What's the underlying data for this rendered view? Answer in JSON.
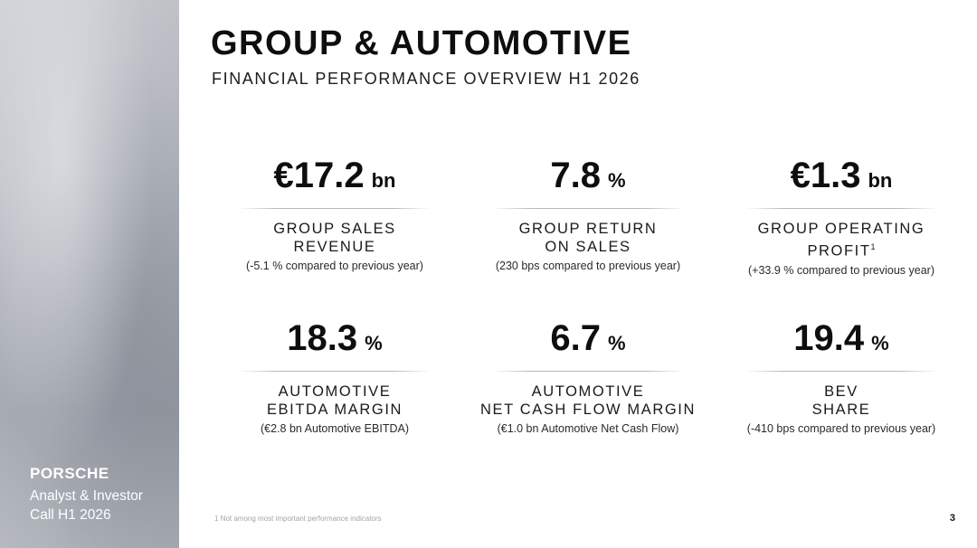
{
  "header": {
    "title": "GROUP & AUTOMOTIVE",
    "subtitle": "FINANCIAL PERFORMANCE OVERVIEW H1 2026"
  },
  "sidebar": {
    "brand": "PORSCHE",
    "event_line1": "Analyst & Investor",
    "event_line2": "Call H1 2026"
  },
  "kpis": [
    {
      "value": "€17.2",
      "unit": "bn",
      "label_line1": "GROUP SALES",
      "label_line2": "REVENUE",
      "label_sup": "",
      "note": "(-5.1 % compared to previous year)"
    },
    {
      "value": "7.8",
      "unit": "%",
      "label_line1": "GROUP RETURN",
      "label_line2": "ON SALES",
      "label_sup": "",
      "note": "(230 bps compared to previous year)"
    },
    {
      "value": "€1.3",
      "unit": "bn",
      "label_line1": "GROUP OPERATING",
      "label_line2": "PROFIT",
      "label_sup": "1",
      "note": "(+33.9 % compared to previous year)"
    },
    {
      "value": "18.3",
      "unit": "%",
      "label_line1": "AUTOMOTIVE",
      "label_line2": "EBITDA MARGIN",
      "label_sup": "",
      "note": "(€2.8 bn Automotive EBITDA)"
    },
    {
      "value": "6.7",
      "unit": "%",
      "label_line1": "AUTOMOTIVE",
      "label_line2": "NET CASH FLOW MARGIN",
      "label_sup": "",
      "note": "(€1.0 bn Automotive Net Cash Flow)"
    },
    {
      "value": "19.4",
      "unit": "%",
      "label_line1": "BEV",
      "label_line2": "SHARE",
      "label_sup": "",
      "note": "(-410 bps compared to previous year)"
    }
  ],
  "footer": {
    "footnote": "1 Not among most important performance indicators",
    "page_number": "3"
  },
  "colors": {
    "text": "#111111",
    "sidebar_gray": "#b0b4bb",
    "brand_text": "#ffffff"
  }
}
